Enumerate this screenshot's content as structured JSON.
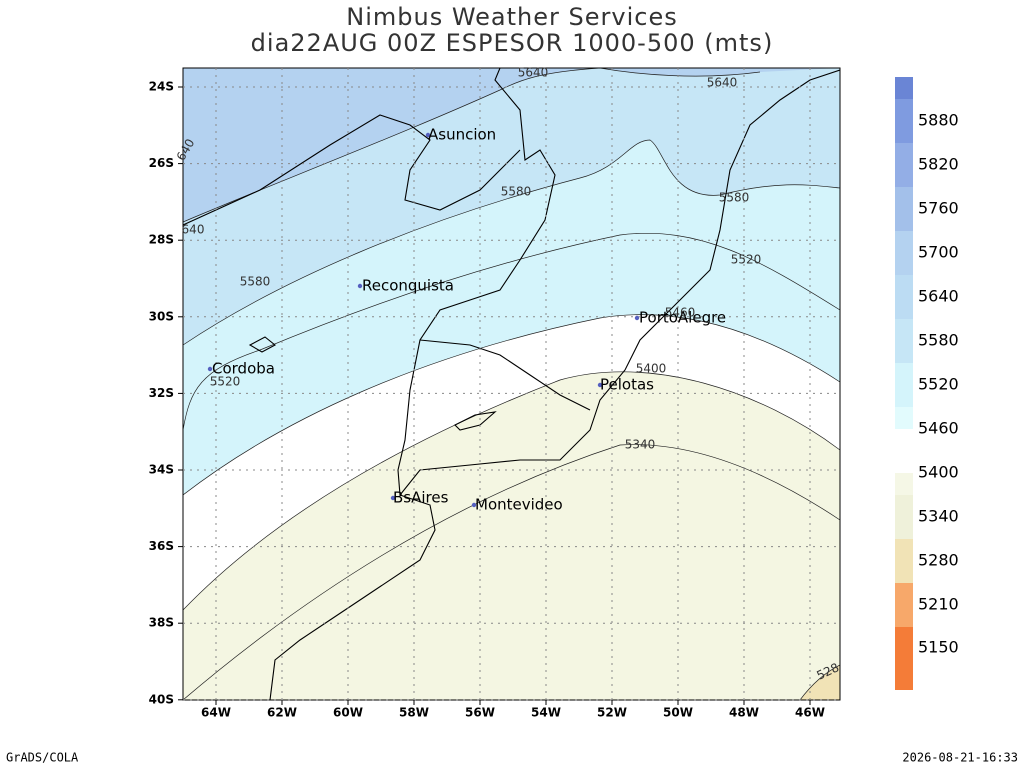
{
  "title": [
    "Nimbus Weather Services",
    "dia22AUG 00Z ESPESOR 1000-500 (mts)"
  ],
  "lat_labels": [
    "24S",
    "26S",
    "28S",
    "30S",
    "32S",
    "34S",
    "36S",
    "38S",
    "40S"
  ],
  "lon_labels": [
    "64W",
    "62W",
    "60W",
    "58W",
    "56W",
    "54W",
    "52W",
    "50W",
    "48W",
    "46W"
  ],
  "cities": [
    "Asuncion",
    "Reconquista",
    "Cordoba",
    "PortoAlegre",
    "Pelotas",
    "BsAires",
    "Montevideo"
  ],
  "contour_labels": [
    "5640",
    "5640",
    "5580",
    "5580",
    "5580",
    "5520",
    "5520",
    "5400",
    "5340",
    "640",
    "640",
    "5460",
    "528"
  ],
  "colorbar_labels": [
    "5880",
    "5820",
    "5760",
    "5700",
    "5640",
    "5580",
    "5520",
    "5460",
    "5400",
    "5340",
    "5280",
    "5210",
    "5150"
  ],
  "footer": {
    "left": "GrADS/COLA",
    "right": "2026-08-21-16:33"
  }
}
